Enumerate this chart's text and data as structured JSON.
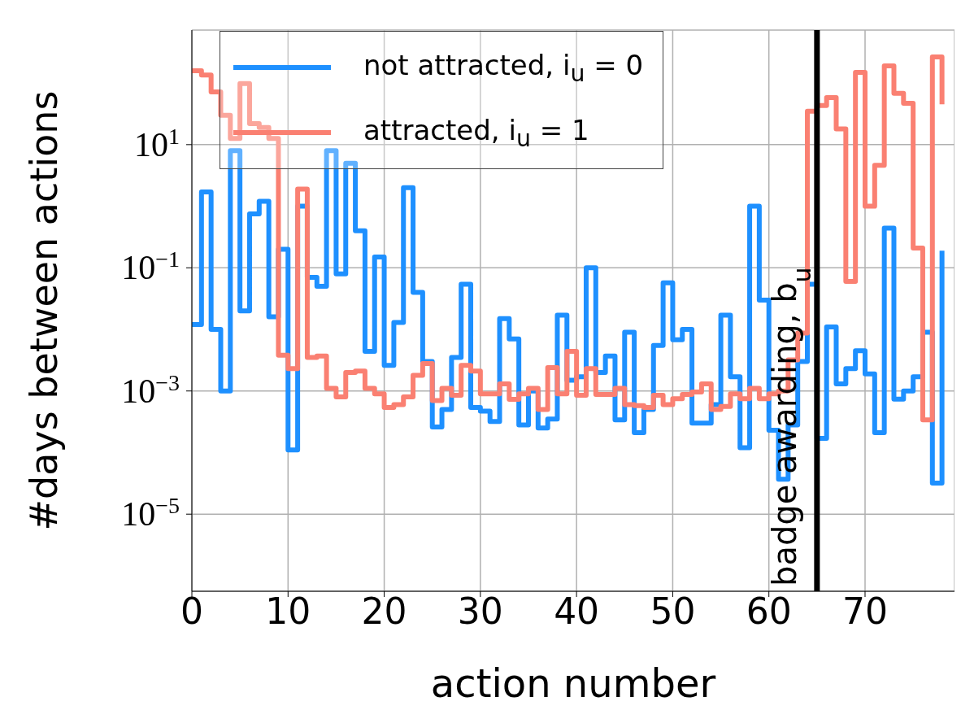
{
  "chart_data": {
    "type": "step",
    "xlabel": "action number",
    "ylabel": "#days between actions",
    "log": "y",
    "grid": true,
    "legend": "top left",
    "line_style": "solid",
    "marker": "none",
    "xlim": [
      0,
      79.3
    ],
    "xticks": [
      0,
      10,
      20,
      30,
      40,
      50,
      60,
      70
    ],
    "ylim": [
      5.6e-07,
      724
    ],
    "yticks": [
      {
        "value": 10,
        "label": "10$^{1}$"
      },
      {
        "value": 0.1,
        "label": "10$^{−1}$"
      },
      {
        "value": 0.001,
        "label": "10$^{−3}$"
      },
      {
        "value": 1e-05,
        "label": "10$^{−5}$"
      }
    ],
    "x": [
      0,
      1,
      2,
      3,
      4,
      5,
      6,
      7,
      8,
      9,
      10,
      11,
      12,
      13,
      14,
      15,
      16,
      17,
      18,
      19,
      20,
      21,
      22,
      23,
      24,
      25,
      26,
      27,
      28,
      29,
      30,
      31,
      32,
      33,
      34,
      35,
      36,
      37,
      38,
      39,
      40,
      41,
      42,
      43,
      44,
      45,
      46,
      47,
      48,
      49,
      50,
      51,
      52,
      53,
      54,
      55,
      56,
      57,
      58,
      59,
      60,
      61,
      62,
      63,
      64,
      65,
      66,
      67,
      68,
      69,
      70,
      71,
      72,
      73,
      74,
      75,
      76,
      77,
      78
    ],
    "series": [
      {
        "name": "not attracted, i$_{u}$ = 0",
        "color": "#1e90ff",
        "values": [
          0.012,
          1.7,
          0.01,
          0.001,
          8,
          0.02,
          0.75,
          1.2,
          0.016,
          0.2,
          0.00011,
          1,
          0.07,
          0.05,
          8,
          0.08,
          5,
          0.4,
          0.0044,
          0.15,
          0.0026,
          0.013,
          2,
          0.04,
          0.003,
          0.00026,
          0.0005,
          0.0035,
          0.054,
          0.00054,
          0.00047,
          0.00032,
          0.015,
          0.007,
          0.00028,
          0.001,
          0.00025,
          0.00035,
          0.017,
          0.0015,
          0.0017,
          0.1,
          0.002,
          0.0037,
          0.00034,
          0.009,
          0.00021,
          0.0005,
          0.0055,
          0.057,
          0.0068,
          0.01,
          0.0003,
          0.0003,
          0.0006,
          0.017,
          0.0017,
          0.00012,
          1,
          0.03,
          0.00023,
          3.7e-05,
          0.00028,
          0.003,
          0.054,
          0.00017,
          0.011,
          0.0013,
          0.0023,
          0.0045,
          0.0019,
          0.00021,
          0.44,
          0.00074,
          0.001,
          0.0017,
          0.009,
          3.2e-05,
          0.19
        ]
      },
      {
        "name": "attracted, i$_{u}$ = 1",
        "color": "#fa8072",
        "values": [
          158,
          135,
          72,
          30,
          12.6,
          98,
          22,
          19,
          12.6,
          0.0038,
          0.0023,
          1.9,
          0.0035,
          0.0037,
          0.0011,
          0.0008,
          0.002,
          0.0021,
          0.0011,
          0.0009,
          0.00054,
          0.0006,
          0.0008,
          0.0018,
          0.0028,
          0.0007,
          0.0011,
          0.00085,
          0.0026,
          0.0021,
          0.0009,
          0.0009,
          0.0013,
          0.00073,
          0.0009,
          0.0011,
          0.0005,
          0.0024,
          0.0009,
          0.0044,
          0.00085,
          0.0023,
          0.00088,
          0.00088,
          0.0011,
          0.0006,
          0.00058,
          0.00054,
          0.00085,
          0.0006,
          0.00075,
          0.00088,
          0.00096,
          0.0013,
          0.0005,
          0.00056,
          0.0009,
          0.00075,
          0.0011,
          0.00075,
          0.0009,
          0.001,
          0.0032,
          0.0087,
          35,
          43,
          58,
          18,
          0.06,
          149,
          1,
          4.6,
          190,
          68,
          47,
          0.21,
          0.00034,
          265,
          45
        ]
      }
    ],
    "ref_lines": [
      {
        "axis": "x",
        "value": 65,
        "label": "badge awarding, b$_{u}$",
        "color": "#000000"
      }
    ]
  }
}
